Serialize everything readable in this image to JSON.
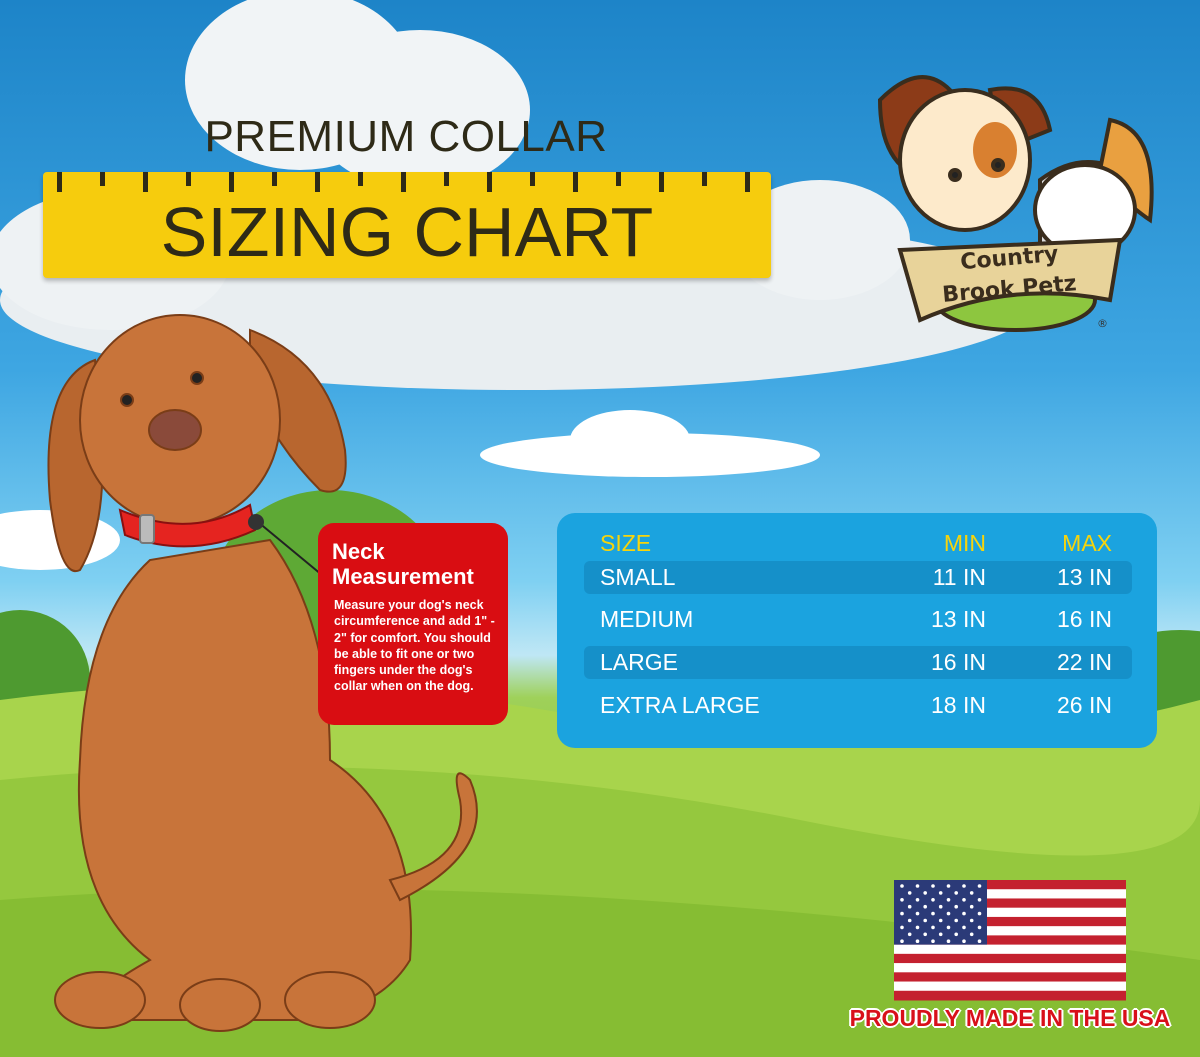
{
  "header": {
    "line1": "PREMIUM COLLAR",
    "line2": "SIZING CHART"
  },
  "logo": {
    "text_line1": "Country",
    "text_line2": "Brook Petz",
    "registered": "®"
  },
  "neck": {
    "title_line1": "Neck",
    "title_line2": "Measurement",
    "body": "Measure your dog's neck circumference and add 1\" - 2\" for comfort. You should be able to fit one or two fingers under the dog's collar when on the dog."
  },
  "table": {
    "headers": [
      "SIZE",
      "MIN",
      "MAX"
    ],
    "rows": [
      {
        "size": "SMALL",
        "min": "11 IN",
        "max": "13 IN"
      },
      {
        "size": "MEDIUM",
        "min": "13 IN",
        "max": "16 IN"
      },
      {
        "size": "LARGE",
        "min": "16 IN",
        "max": "22 IN"
      },
      {
        "size": "EXTRA LARGE",
        "min": "18 IN",
        "max": "26 IN"
      }
    ]
  },
  "footer": {
    "made_in": "PROUDLY MADE IN THE USA"
  },
  "colors": {
    "ruler": "#f6cc0d",
    "table": "#1ba3df",
    "header_text": "#f7d40c",
    "neck_box": "#d90d12",
    "collar": "#e52420",
    "dog": "#c8743a"
  }
}
